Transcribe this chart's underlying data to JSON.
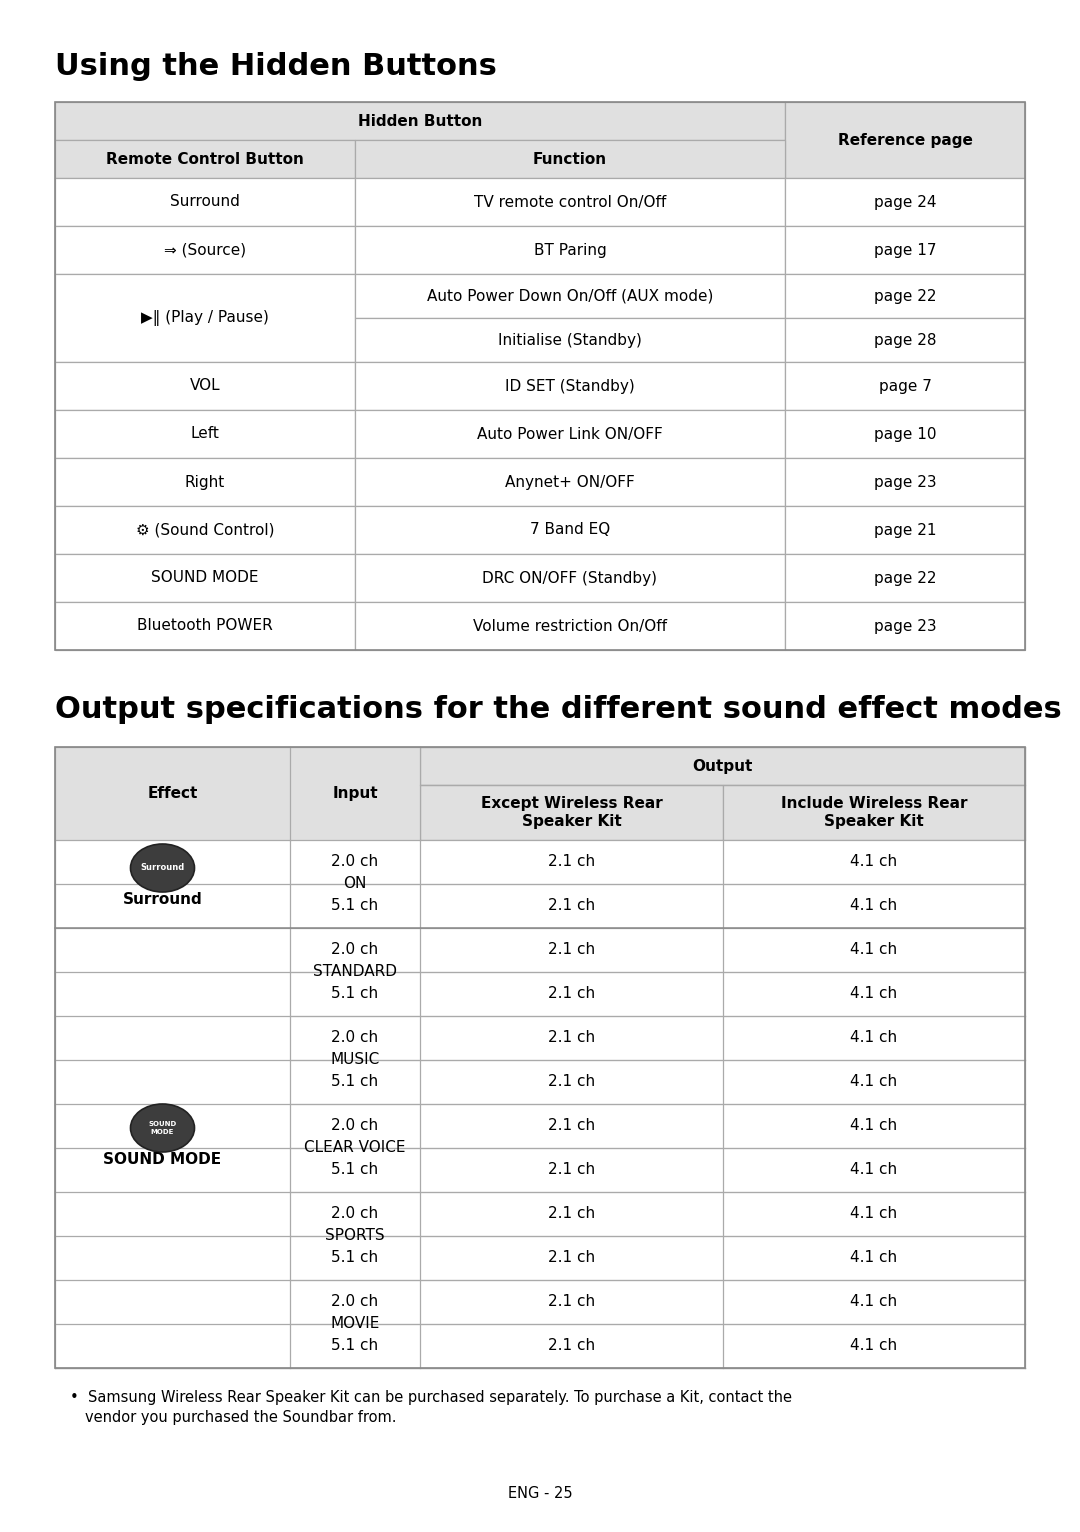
{
  "title1": "Using the Hidden Buttons",
  "title2": "Output specifications for the different sound effect modes",
  "table1_header1": "Hidden Button",
  "table1_col1": "Remote Control Button",
  "table1_col2": "Function",
  "table1_col3": "Reference page",
  "table1_rows": [
    [
      "Surround",
      "TV remote control On/Off",
      "page 24"
    ],
    [
      "⇒ (Source)",
      "BT Paring",
      "page 17"
    ],
    [
      "▶‖ (Play / Pause)",
      "Auto Power Down On/Off (AUX mode)",
      "page 22"
    ],
    [
      "",
      "Initialise (Standby)",
      "page 28"
    ],
    [
      "VOL",
      "ID SET (Standby)",
      "page 7"
    ],
    [
      "Left",
      "Auto Power Link ON/OFF",
      "page 10"
    ],
    [
      "Right",
      "Anynet+ ON/OFF",
      "page 23"
    ],
    [
      "⚙ (Sound Control)",
      "7 Band EQ",
      "page 21"
    ],
    [
      "SOUND MODE",
      "DRC ON/OFF (Standby)",
      "page 22"
    ],
    [
      "Bluetooth POWER",
      "Volume restriction On/Off",
      "page 23"
    ]
  ],
  "table2_col_effect": "Effect",
  "table2_col_input": "Input",
  "table2_col_output": "Output",
  "table2_col_except": "Except Wireless Rear\nSpeaker Kit",
  "table2_col_include": "Include Wireless Rear\nSpeaker Kit",
  "table2_rows": [
    [
      "Surround",
      "ON",
      "2.0 ch",
      "2.1 ch",
      "4.1 ch"
    ],
    [
      "Surround",
      "ON",
      "5.1 ch",
      "2.1 ch",
      "4.1 ch"
    ],
    [
      "SOUND MODE",
      "STANDARD",
      "2.0 ch",
      "2.1 ch",
      "4.1 ch"
    ],
    [
      "SOUND MODE",
      "STANDARD",
      "5.1 ch",
      "2.1 ch",
      "4.1 ch"
    ],
    [
      "SOUND MODE",
      "MUSIC",
      "2.0 ch",
      "2.1 ch",
      "4.1 ch"
    ],
    [
      "SOUND MODE",
      "MUSIC",
      "5.1 ch",
      "2.1 ch",
      "4.1 ch"
    ],
    [
      "SOUND MODE",
      "CLEAR VOICE",
      "2.0 ch",
      "2.1 ch",
      "4.1 ch"
    ],
    [
      "SOUND MODE",
      "CLEAR VOICE",
      "5.1 ch",
      "2.1 ch",
      "4.1 ch"
    ],
    [
      "SOUND MODE",
      "SPORTS",
      "2.0 ch",
      "2.1 ch",
      "4.1 ch"
    ],
    [
      "SOUND MODE",
      "SPORTS",
      "5.1 ch",
      "2.1 ch",
      "4.1 ch"
    ],
    [
      "SOUND MODE",
      "MOVIE",
      "2.0 ch",
      "2.1 ch",
      "4.1 ch"
    ],
    [
      "SOUND MODE",
      "MOVIE",
      "5.1 ch",
      "2.1 ch",
      "4.1 ch"
    ]
  ],
  "footnote_line1": "Samsung Wireless Rear Speaker Kit can be purchased separately. To purchase a Kit, contact the",
  "footnote_line2": "vendor you purchased the Soundbar from.",
  "page_num": "ENG - 25",
  "bg_color": "#ffffff",
  "header_bg": "#e0e0e0",
  "border_color": "#aaaaaa",
  "text_color": "#000000",
  "title1_fontsize": 22,
  "title2_fontsize": 22,
  "header_fontsize": 11,
  "cell_fontsize": 11,
  "footnote_fontsize": 10.5
}
